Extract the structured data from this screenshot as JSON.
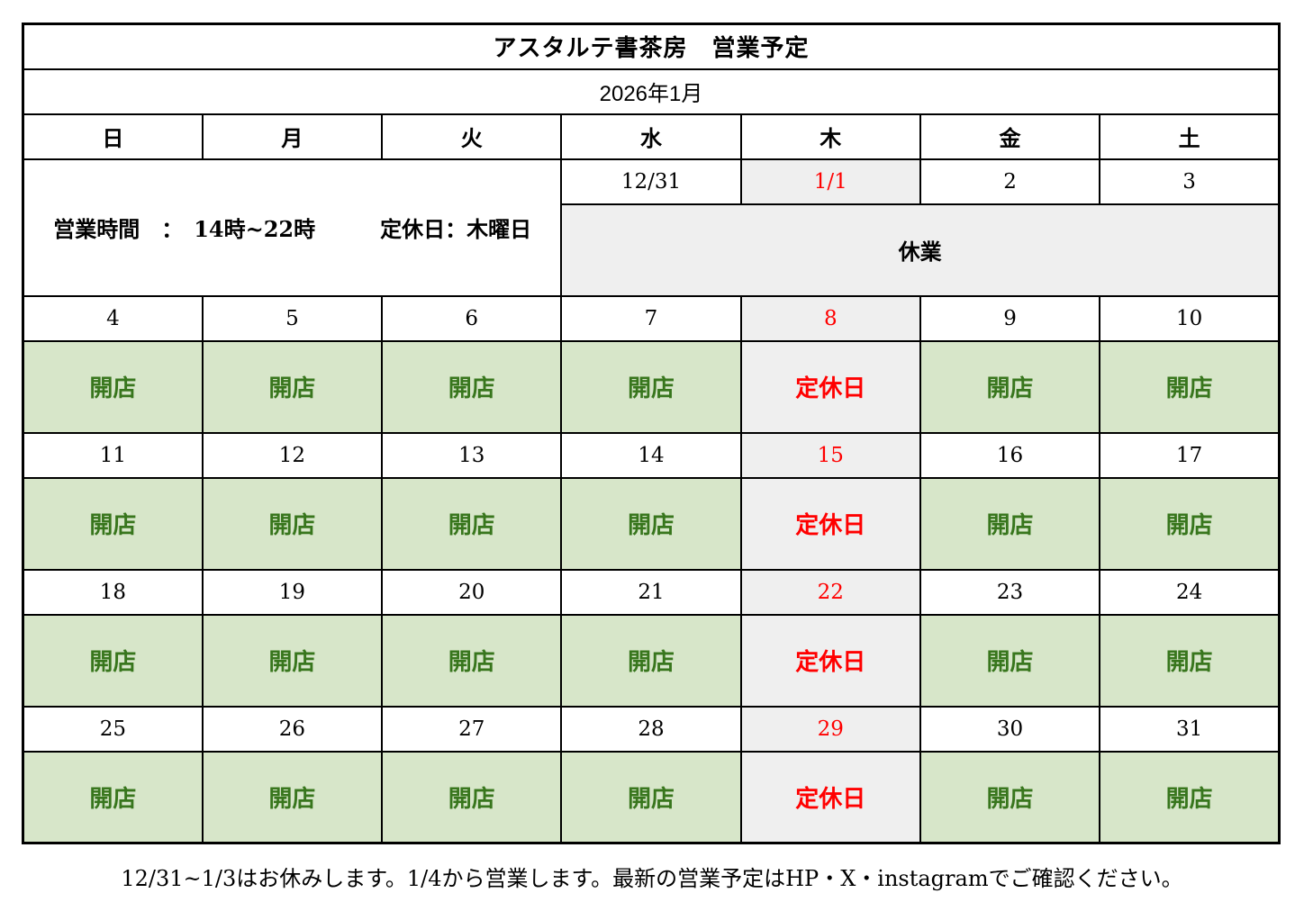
{
  "title": "アスタルテ書茶房　営業予定",
  "month": "2026年1月",
  "day_headers": [
    "日",
    "月",
    "火",
    "水",
    "木",
    "金",
    "土"
  ],
  "info_text": "営業時間　：　14時~22時　　　定休日：木曜日",
  "week1": {
    "dates": [
      "12/31",
      "1/1",
      "2",
      "3"
    ],
    "closed_label": "休業"
  },
  "weeks": [
    {
      "dates": [
        "4",
        "5",
        "6",
        "7",
        "8",
        "9",
        "10"
      ],
      "statuses": [
        "開店",
        "開店",
        "開店",
        "開店",
        "定休日",
        "開店",
        "開店"
      ]
    },
    {
      "dates": [
        "11",
        "12",
        "13",
        "14",
        "15",
        "16",
        "17"
      ],
      "statuses": [
        "開店",
        "開店",
        "開店",
        "開店",
        "定休日",
        "開店",
        "開店"
      ]
    },
    {
      "dates": [
        "18",
        "19",
        "20",
        "21",
        "22",
        "23",
        "24"
      ],
      "statuses": [
        "開店",
        "開店",
        "開店",
        "開店",
        "定休日",
        "開店",
        "開店"
      ]
    },
    {
      "dates": [
        "25",
        "26",
        "27",
        "28",
        "29",
        "30",
        "31"
      ],
      "statuses": [
        "開店",
        "開店",
        "開店",
        "開店",
        "定休日",
        "開店",
        "開店"
      ]
    }
  ],
  "note": "12/31~1/3はお休みします。1/4から営業します。最新の営業予定はHP・X・instagramでご確認ください。",
  "colors": {
    "open_bg": "#d7e6c9",
    "open_text": "#38761d",
    "closed_bg": "#efefef",
    "closed_text": "#ff0000",
    "border": "#000000",
    "background": "#ffffff"
  }
}
